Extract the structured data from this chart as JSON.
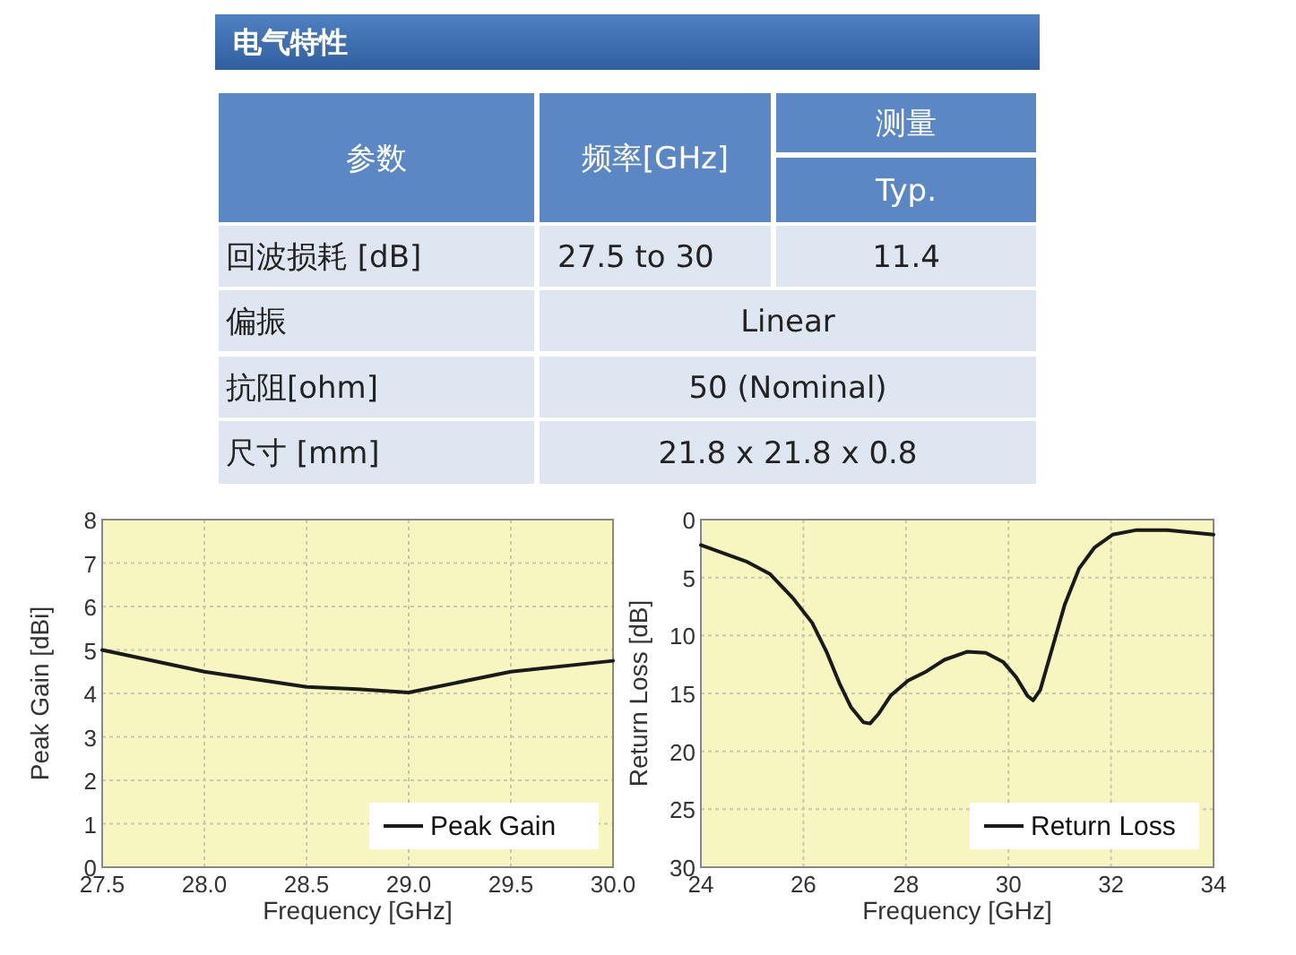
{
  "chart_data": [
    {
      "type": "other",
      "title": "电气特性",
      "annotations": [
        "参数",
        "频率[GHz]",
        "测量",
        "Typ.",
        "回波损耗 [dB]",
        "27.5  to  30",
        "11.4",
        "偏振",
        "Linear",
        "抗阻[ohm]",
        "50 (Nominal)",
        "尺寸 [mm]",
        "21.8 x 21.8 x 0.8"
      ]
    },
    {
      "type": "line",
      "xlabel": "Frequency [GHz]",
      "ylabel": "Peak Gain [dBi]",
      "xlim": [
        27.5,
        30.0
      ],
      "ylim": [
        0,
        8
      ],
      "xticks": [
        27.5,
        {
          "value": 28,
          "label": "28.0"
        },
        28.5,
        {
          "value": 29,
          "label": "29.0"
        },
        29.5,
        {
          "value": 30,
          "label": "30.0"
        }
      ],
      "yticks": [
        0,
        1,
        2,
        3,
        4,
        5,
        6,
        7,
        8
      ],
      "grid": true,
      "legend": "bottom right",
      "series": [
        {
          "name": "Peak Gain",
          "color": "#1a1a1a",
          "x": [
            27.5,
            28.0,
            28.5,
            28.75,
            29.0,
            29.5,
            30.0
          ],
          "values": [
            5.0,
            4.5,
            4.15,
            4.1,
            4.02,
            4.5,
            4.75
          ]
        }
      ]
    },
    {
      "type": "line",
      "xlabel": "Frequency [GHz]",
      "ylabel": "Return Loss [dB]",
      "xlim": [
        24,
        34
      ],
      "ylim": [
        30,
        0
      ],
      "xticks": [
        24,
        26,
        28,
        30,
        32,
        34
      ],
      "yticks": [
        0,
        5,
        10,
        15,
        20,
        25,
        30
      ],
      "grid": true,
      "legend": "bottom right",
      "series": [
        {
          "name": "Return Loss",
          "color": "#1a1a1a",
          "x": [
            24,
            24.88,
            25.35,
            25.8,
            26.17,
            26.46,
            26.7,
            26.93,
            27.17,
            27.3,
            27.46,
            27.7,
            28.04,
            28.4,
            28.75,
            29.2,
            29.56,
            29.9,
            30.15,
            30.37,
            30.48,
            30.62,
            30.86,
            31.1,
            31.38,
            31.68,
            32.03,
            32.5,
            33.1,
            34
          ],
          "values": [
            2.2,
            3.6,
            4.7,
            6.8,
            8.9,
            11.5,
            14.1,
            16.2,
            17.5,
            17.6,
            16.8,
            15.2,
            13.9,
            13.1,
            12.1,
            11.4,
            11.5,
            12.3,
            13.6,
            15.2,
            15.6,
            14.7,
            11.0,
            7.3,
            4.2,
            2.4,
            1.3,
            0.9,
            0.9,
            1.3
          ]
        }
      ]
    }
  ]
}
